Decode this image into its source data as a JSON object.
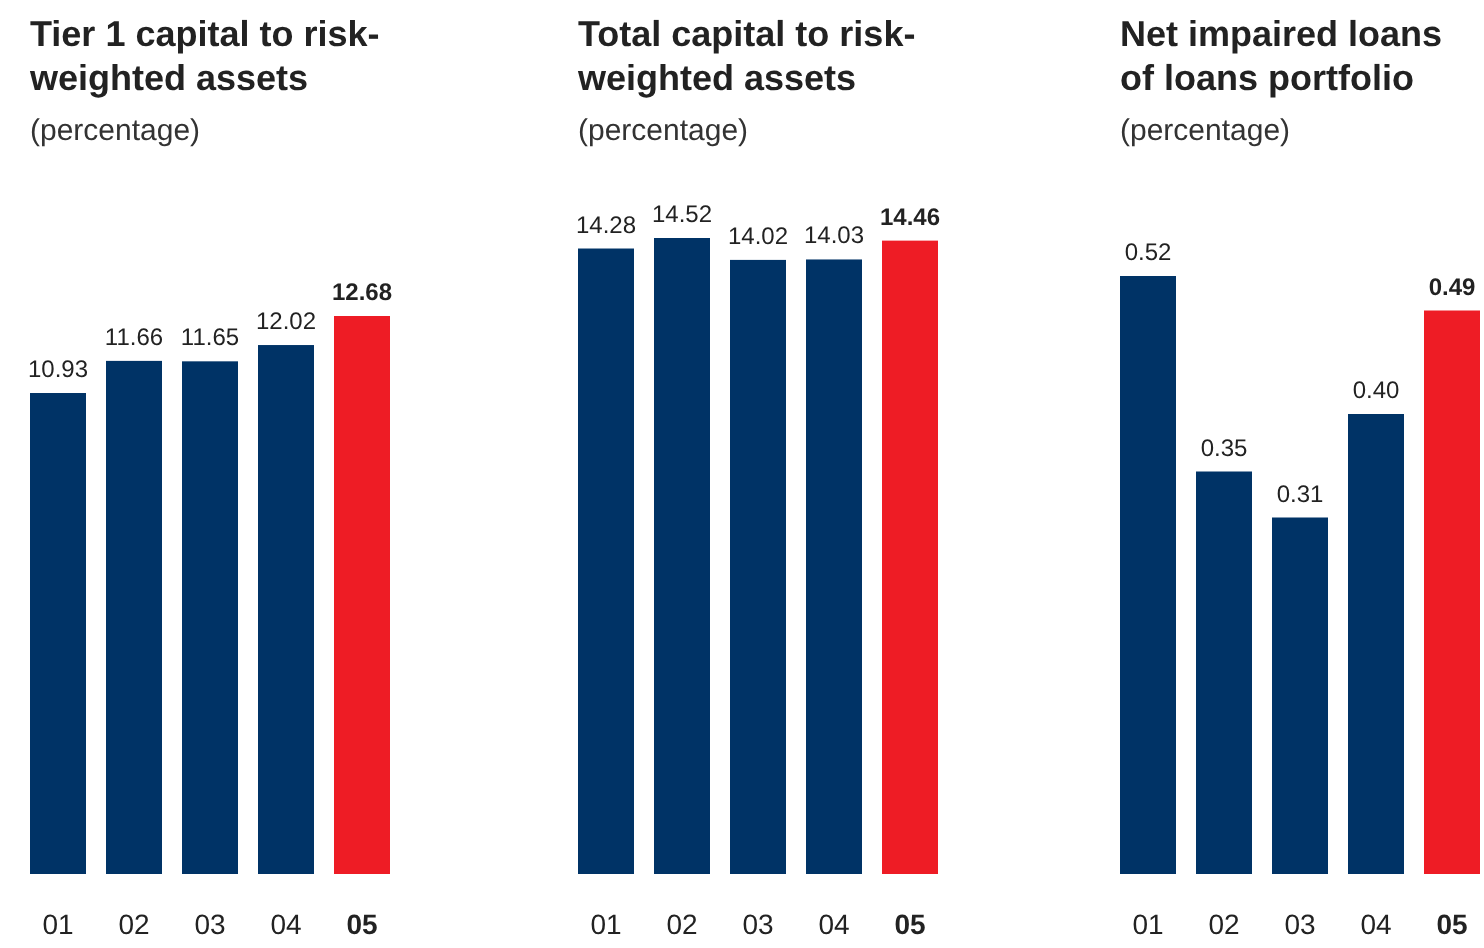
{
  "chart_data": [
    {
      "type": "bar",
      "title": "Tier 1 capital to risk-\nweighted assets",
      "subtitle": "(percentage)",
      "categories": [
        "01",
        "02",
        "03",
        "04",
        "05"
      ],
      "values": [
        10.93,
        11.66,
        11.65,
        12.02,
        12.68
      ],
      "colors": [
        "#003366",
        "#003366",
        "#003366",
        "#003366",
        "#ee1c25"
      ],
      "value_labels": [
        "10.93",
        "11.66",
        "11.65",
        "12.02",
        "12.68"
      ]
    },
    {
      "type": "bar",
      "title": "Total capital to risk-\nweighted assets",
      "subtitle": "(percentage)",
      "categories": [
        "01",
        "02",
        "03",
        "04",
        "05"
      ],
      "values": [
        14.28,
        14.52,
        14.02,
        14.03,
        14.46
      ],
      "colors": [
        "#003366",
        "#003366",
        "#003366",
        "#003366",
        "#ee1c25"
      ],
      "value_labels": [
        "14.28",
        "14.52",
        "14.02",
        "14.03",
        "14.46"
      ]
    },
    {
      "type": "bar",
      "title": "Net impaired loans\nof loans portfolio",
      "subtitle": "(percentage)",
      "categories": [
        "01",
        "02",
        "03",
        "04",
        "05"
      ],
      "values": [
        0.52,
        0.35,
        0.31,
        0.4,
        0.49
      ],
      "colors": [
        "#003366",
        "#003366",
        "#003366",
        "#003366",
        "#ee1c25"
      ],
      "value_labels": [
        "0.52",
        "0.35",
        "0.31",
        "0.40",
        "0.49"
      ]
    }
  ]
}
